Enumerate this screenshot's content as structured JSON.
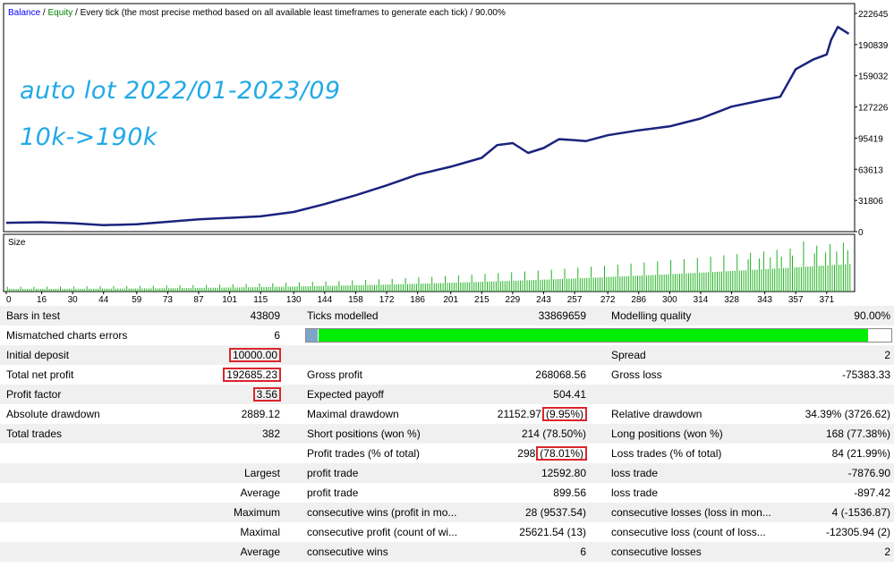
{
  "chart": {
    "legend": {
      "balance": "Balance",
      "sep1": " / ",
      "equity": "Equity",
      "desc": " / Every tick (the most precise method based on all available least timeframes to generate each tick)",
      "quality": " / 90.00%"
    },
    "annotation_line1": "auto lot 2022/01-2023/09",
    "annotation_line2": "10k->190k",
    "size_label": "Size",
    "colors": {
      "balance_text": "#0000ff",
      "equity_text": "#008000",
      "balance_line": "#1a237e",
      "volume_bar": "#21b221",
      "quality_bar": "#00ee00",
      "annotation": "#22a9e8"
    }
  },
  "chart_data": {
    "type": "line",
    "series": [
      {
        "name": "Balance",
        "x": [
          0,
          16,
          30,
          44,
          59,
          73,
          87,
          101,
          115,
          130,
          144,
          158,
          172,
          186,
          201,
          215,
          222,
          229,
          236,
          243,
          250,
          257,
          262,
          272,
          286,
          300,
          314,
          328,
          343,
          350,
          357,
          365,
          371,
          373,
          376,
          381
        ],
        "y": [
          9000,
          9500,
          8500,
          6500,
          7500,
          10000,
          12500,
          14000,
          15500,
          20000,
          28000,
          37000,
          47000,
          58000,
          66000,
          75000,
          88000,
          90000,
          80000,
          85000,
          94000,
          93000,
          92000,
          98000,
          103000,
          107000,
          115000,
          127000,
          134000,
          137000,
          165000,
          175000,
          180000,
          195000,
          208000,
          201000
        ]
      }
    ],
    "y_ticks": [
      "222645",
      "190839",
      "159032",
      "127226",
      "95419",
      "63613",
      "31806",
      "0"
    ],
    "x_ticks": [
      "0",
      "16",
      "30",
      "44",
      "59",
      "73",
      "87",
      "101",
      "115",
      "130",
      "144",
      "158",
      "172",
      "186",
      "201",
      "215",
      "229",
      "243",
      "257",
      "272",
      "286",
      "300",
      "314",
      "328",
      "343",
      "357",
      "371"
    ],
    "ylim": [
      0,
      222645
    ],
    "xlim": [
      0,
      382
    ]
  },
  "quality_progress": 0.96,
  "report": {
    "rows": [
      {
        "c": [
          {
            "t": "Bars in test",
            "k": "lab"
          },
          {
            "t": "43809",
            "k": "val"
          },
          {
            "t": "Ticks modelled",
            "k": "lab"
          },
          {
            "t": "33869659",
            "k": "val"
          },
          {
            "t": "Modelling quality",
            "k": "lab"
          },
          {
            "t": "90.00%",
            "k": "val"
          }
        ]
      },
      {
        "c": [
          {
            "t": "Mismatched charts errors",
            "k": "lab"
          },
          {
            "t": "6",
            "k": "val"
          }
        ],
        "bar": true
      },
      {
        "c": [
          {
            "t": "Initial deposit",
            "k": "lab"
          },
          {
            "t": "10000.00",
            "k": "val",
            "box": true
          },
          {
            "t": "",
            "k": "lab"
          },
          {
            "t": "",
            "k": "val"
          },
          {
            "t": "Spread",
            "k": "lab"
          },
          {
            "t": "2",
            "k": "val"
          }
        ]
      },
      {
        "c": [
          {
            "t": "Total net profit",
            "k": "lab"
          },
          {
            "t": "192685.23",
            "k": "val",
            "box": true
          },
          {
            "t": "Gross profit",
            "k": "lab"
          },
          {
            "t": "268068.56",
            "k": "val"
          },
          {
            "t": "Gross loss",
            "k": "lab"
          },
          {
            "t": "-75383.33",
            "k": "val"
          }
        ]
      },
      {
        "c": [
          {
            "t": "Profit factor",
            "k": "lab"
          },
          {
            "t": "3.56",
            "k": "val",
            "box": true
          },
          {
            "t": "Expected payoff",
            "k": "lab"
          },
          {
            "t": "504.41",
            "k": "val"
          }
        ]
      },
      {
        "c": [
          {
            "t": "Absolute drawdown",
            "k": "lab"
          },
          {
            "t": "2889.12",
            "k": "val"
          },
          {
            "t": "Maximal drawdown",
            "k": "lab"
          },
          {
            "t": "21152.97",
            "k": "val",
            "extra": "(9.95%)"
          },
          {
            "t": "Relative drawdown",
            "k": "lab"
          },
          {
            "t": "34.39% (3726.62)",
            "k": "val"
          }
        ]
      },
      {
        "c": [
          {
            "t": "Total trades",
            "k": "lab"
          },
          {
            "t": "382",
            "k": "val"
          },
          {
            "t": "Short positions (won %)",
            "k": "lab"
          },
          {
            "t": "214 (78.50%)",
            "k": "val"
          },
          {
            "t": "Long positions (won %)",
            "k": "lab"
          },
          {
            "t": "168 (77.38%)",
            "k": "val"
          }
        ]
      },
      {
        "c": [
          {
            "t": "",
            "k": "lab"
          },
          {
            "t": "",
            "k": "val"
          },
          {
            "t": "Profit trades (% of total)",
            "k": "lab"
          },
          {
            "t": "298",
            "k": "val",
            "extra": "(78.01%)"
          },
          {
            "t": "Loss trades (% of total)",
            "k": "lab"
          },
          {
            "t": "84 (21.99%)",
            "k": "val"
          }
        ]
      },
      {
        "c": [
          {
            "t": "",
            "k": "lab"
          },
          {
            "t": "Largest",
            "k": "val"
          },
          {
            "t": "profit trade",
            "k": "lab"
          },
          {
            "t": "12592.80",
            "k": "val"
          },
          {
            "t": "loss trade",
            "k": "lab"
          },
          {
            "t": "-7876.90",
            "k": "val"
          }
        ]
      },
      {
        "c": [
          {
            "t": "",
            "k": "lab"
          },
          {
            "t": "Average",
            "k": "val"
          },
          {
            "t": "profit trade",
            "k": "lab"
          },
          {
            "t": "899.56",
            "k": "val"
          },
          {
            "t": "loss trade",
            "k": "lab"
          },
          {
            "t": "-897.42",
            "k": "val"
          }
        ]
      },
      {
        "c": [
          {
            "t": "",
            "k": "lab"
          },
          {
            "t": "Maximum",
            "k": "val"
          },
          {
            "t": "consecutive wins (profit in mo...",
            "k": "lab"
          },
          {
            "t": "28 (9537.54)",
            "k": "val"
          },
          {
            "t": "consecutive losses (loss in mon...",
            "k": "lab"
          },
          {
            "t": "4 (-1536.87)",
            "k": "val"
          }
        ]
      },
      {
        "c": [
          {
            "t": "",
            "k": "lab"
          },
          {
            "t": "Maximal",
            "k": "val"
          },
          {
            "t": "consecutive profit (count of wi...",
            "k": "lab"
          },
          {
            "t": "25621.54 (13)",
            "k": "val"
          },
          {
            "t": "consecutive loss (count of loss...",
            "k": "lab"
          },
          {
            "t": "-12305.94 (2)",
            "k": "val"
          }
        ]
      },
      {
        "c": [
          {
            "t": "",
            "k": "lab"
          },
          {
            "t": "Average",
            "k": "val"
          },
          {
            "t": "consecutive wins",
            "k": "lab"
          },
          {
            "t": "6",
            "k": "val"
          },
          {
            "t": "consecutive losses",
            "k": "lab"
          },
          {
            "t": "2",
            "k": "val"
          }
        ]
      }
    ]
  }
}
